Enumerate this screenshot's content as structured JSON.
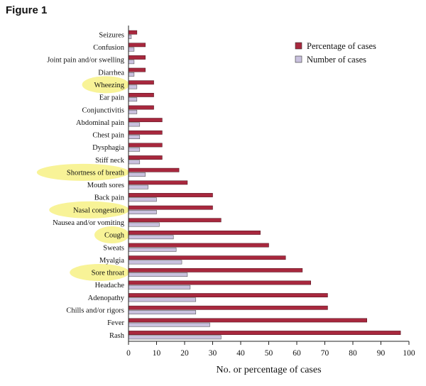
{
  "figure_label": "Figure 1",
  "chart_data": {
    "type": "bar",
    "orientation": "horizontal",
    "title": "",
    "xlabel": "No. or percentage of cases",
    "ylabel": "",
    "xlim": [
      0,
      100
    ],
    "x_ticks": [
      0,
      10,
      20,
      30,
      40,
      50,
      60,
      70,
      80,
      90,
      100
    ],
    "grid": false,
    "legend_position": "top-right",
    "categories": [
      "Seizures",
      "Confusion",
      "Joint pain and/or swelling",
      "Diarrhea",
      "Wheezing",
      "Ear pain",
      "Conjunctivitis",
      "Abdominal pain",
      "Chest pain",
      "Dysphagia",
      "Stiff neck",
      "Shortness of breath",
      "Mouth sores",
      "Back pain",
      "Nasal congestion",
      "Nausea and/or vomiting",
      "Cough",
      "Sweats",
      "Myalgia",
      "Sore throat",
      "Headache",
      "Adenopathy",
      "Chills and/or rigors",
      "Fever",
      "Rash"
    ],
    "series": [
      {
        "name": "Percentage of cases",
        "color": "#a8283e",
        "values": [
          3,
          6,
          6,
          6,
          9,
          9,
          9,
          12,
          12,
          12,
          12,
          18,
          21,
          30,
          30,
          33,
          47,
          50,
          56,
          62,
          65,
          71,
          71,
          85,
          97
        ]
      },
      {
        "name": "Number of cases",
        "color": "#c9c1de",
        "values": [
          1,
          2,
          2,
          2,
          3,
          3,
          3,
          4,
          4,
          4,
          4,
          6,
          7,
          10,
          10,
          11,
          16,
          17,
          19,
          21,
          22,
          24,
          24,
          29,
          33
        ]
      }
    ],
    "highlighted_categories": [
      "Wheezing",
      "Shortness of breath",
      "Nasal congestion",
      "Cough",
      "Sore throat"
    ],
    "highlight_color": "#f7f28c"
  }
}
